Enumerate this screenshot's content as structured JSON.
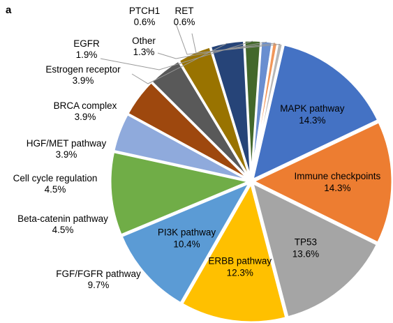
{
  "panel_label": "a",
  "chart_data": {
    "type": "pie",
    "title": "",
    "start_angle_deg": 77,
    "direction": "clockwise",
    "slices": [
      {
        "label": "MAPK pathway",
        "value": 14.3,
        "value_label": "14.3%",
        "color": "#4472C4",
        "label_inside": true
      },
      {
        "label": "Immune checkpoints",
        "value": 14.3,
        "value_label": "14.3%",
        "color": "#ED7D31",
        "label_inside": true
      },
      {
        "label": "TP53",
        "value": 13.6,
        "value_label": "13.6%",
        "color": "#A5A5A5",
        "label_inside": true
      },
      {
        "label": "ERBB pathway",
        "value": 12.3,
        "value_label": "12.3%",
        "color": "#FFC000",
        "label_inside": true
      },
      {
        "label": "PI3K pathway",
        "value": 10.4,
        "value_label": "10.4%",
        "color": "#5B9BD5",
        "label_inside": true
      },
      {
        "label": "FGF/FGFR pathway",
        "value": 9.7,
        "value_label": "9.7%",
        "color": "#70AD47",
        "label_inside": false
      },
      {
        "label": "Beta-catenin pathway",
        "value": 4.5,
        "value_label": "4.5%",
        "color": "#8FAADC",
        "label_inside": false
      },
      {
        "label": "Cell cycle regulation",
        "value": 4.5,
        "value_label": "4.5%",
        "color": "#9E480E",
        "label_inside": false
      },
      {
        "label": "HGF/MET pathway",
        "value": 3.9,
        "value_label": "3.9%",
        "color": "#595959",
        "label_inside": false
      },
      {
        "label": "BRCA complex",
        "value": 3.9,
        "value_label": "3.9%",
        "color": "#997300",
        "label_inside": false
      },
      {
        "label": "Estrogen receptor",
        "value": 3.9,
        "value_label": "3.9%",
        "color": "#264478",
        "label_inside": false
      },
      {
        "label": "EGFR",
        "value": 1.9,
        "value_label": "1.9%",
        "color": "#43682B",
        "label_inside": false
      },
      {
        "label": "Other",
        "value": 1.3,
        "value_label": "1.3%",
        "color": "#698ED0",
        "label_inside": false
      },
      {
        "label": "PTCH1",
        "value": 0.6,
        "value_label": "0.6%",
        "color": "#F1975A",
        "label_inside": false
      },
      {
        "label": "RET",
        "value": 0.6,
        "value_label": "0.6%",
        "color": "#B7B7B7",
        "label_inside": false
      }
    ]
  }
}
